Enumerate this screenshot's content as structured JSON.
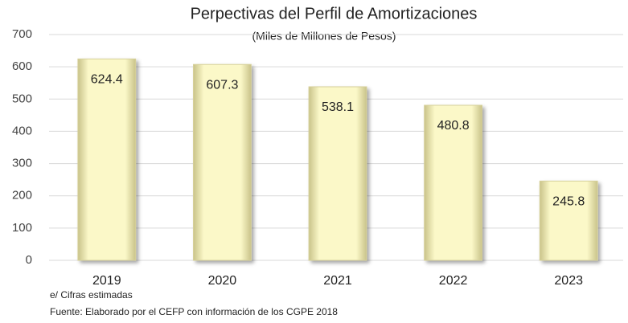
{
  "chart_data": {
    "type": "bar",
    "title": "Perpectivas del Perfil de Amortizaciones",
    "subtitle": "(Miles de Millones de Pesos)",
    "categories": [
      "2019",
      "2020",
      "2021",
      "2022",
      "2023"
    ],
    "values": [
      624.4,
      607.3,
      538.1,
      480.8,
      245.8
    ],
    "color": "#fbf8c8",
    "ylim": [
      0,
      700
    ],
    "yticks": [
      0,
      100,
      200,
      300,
      400,
      500,
      600,
      700
    ],
    "grid": true,
    "footnote": "e/ Cifras estimadas",
    "source": "Fuente: Elaborado por el CEFP con información de los CGPE 2018"
  }
}
